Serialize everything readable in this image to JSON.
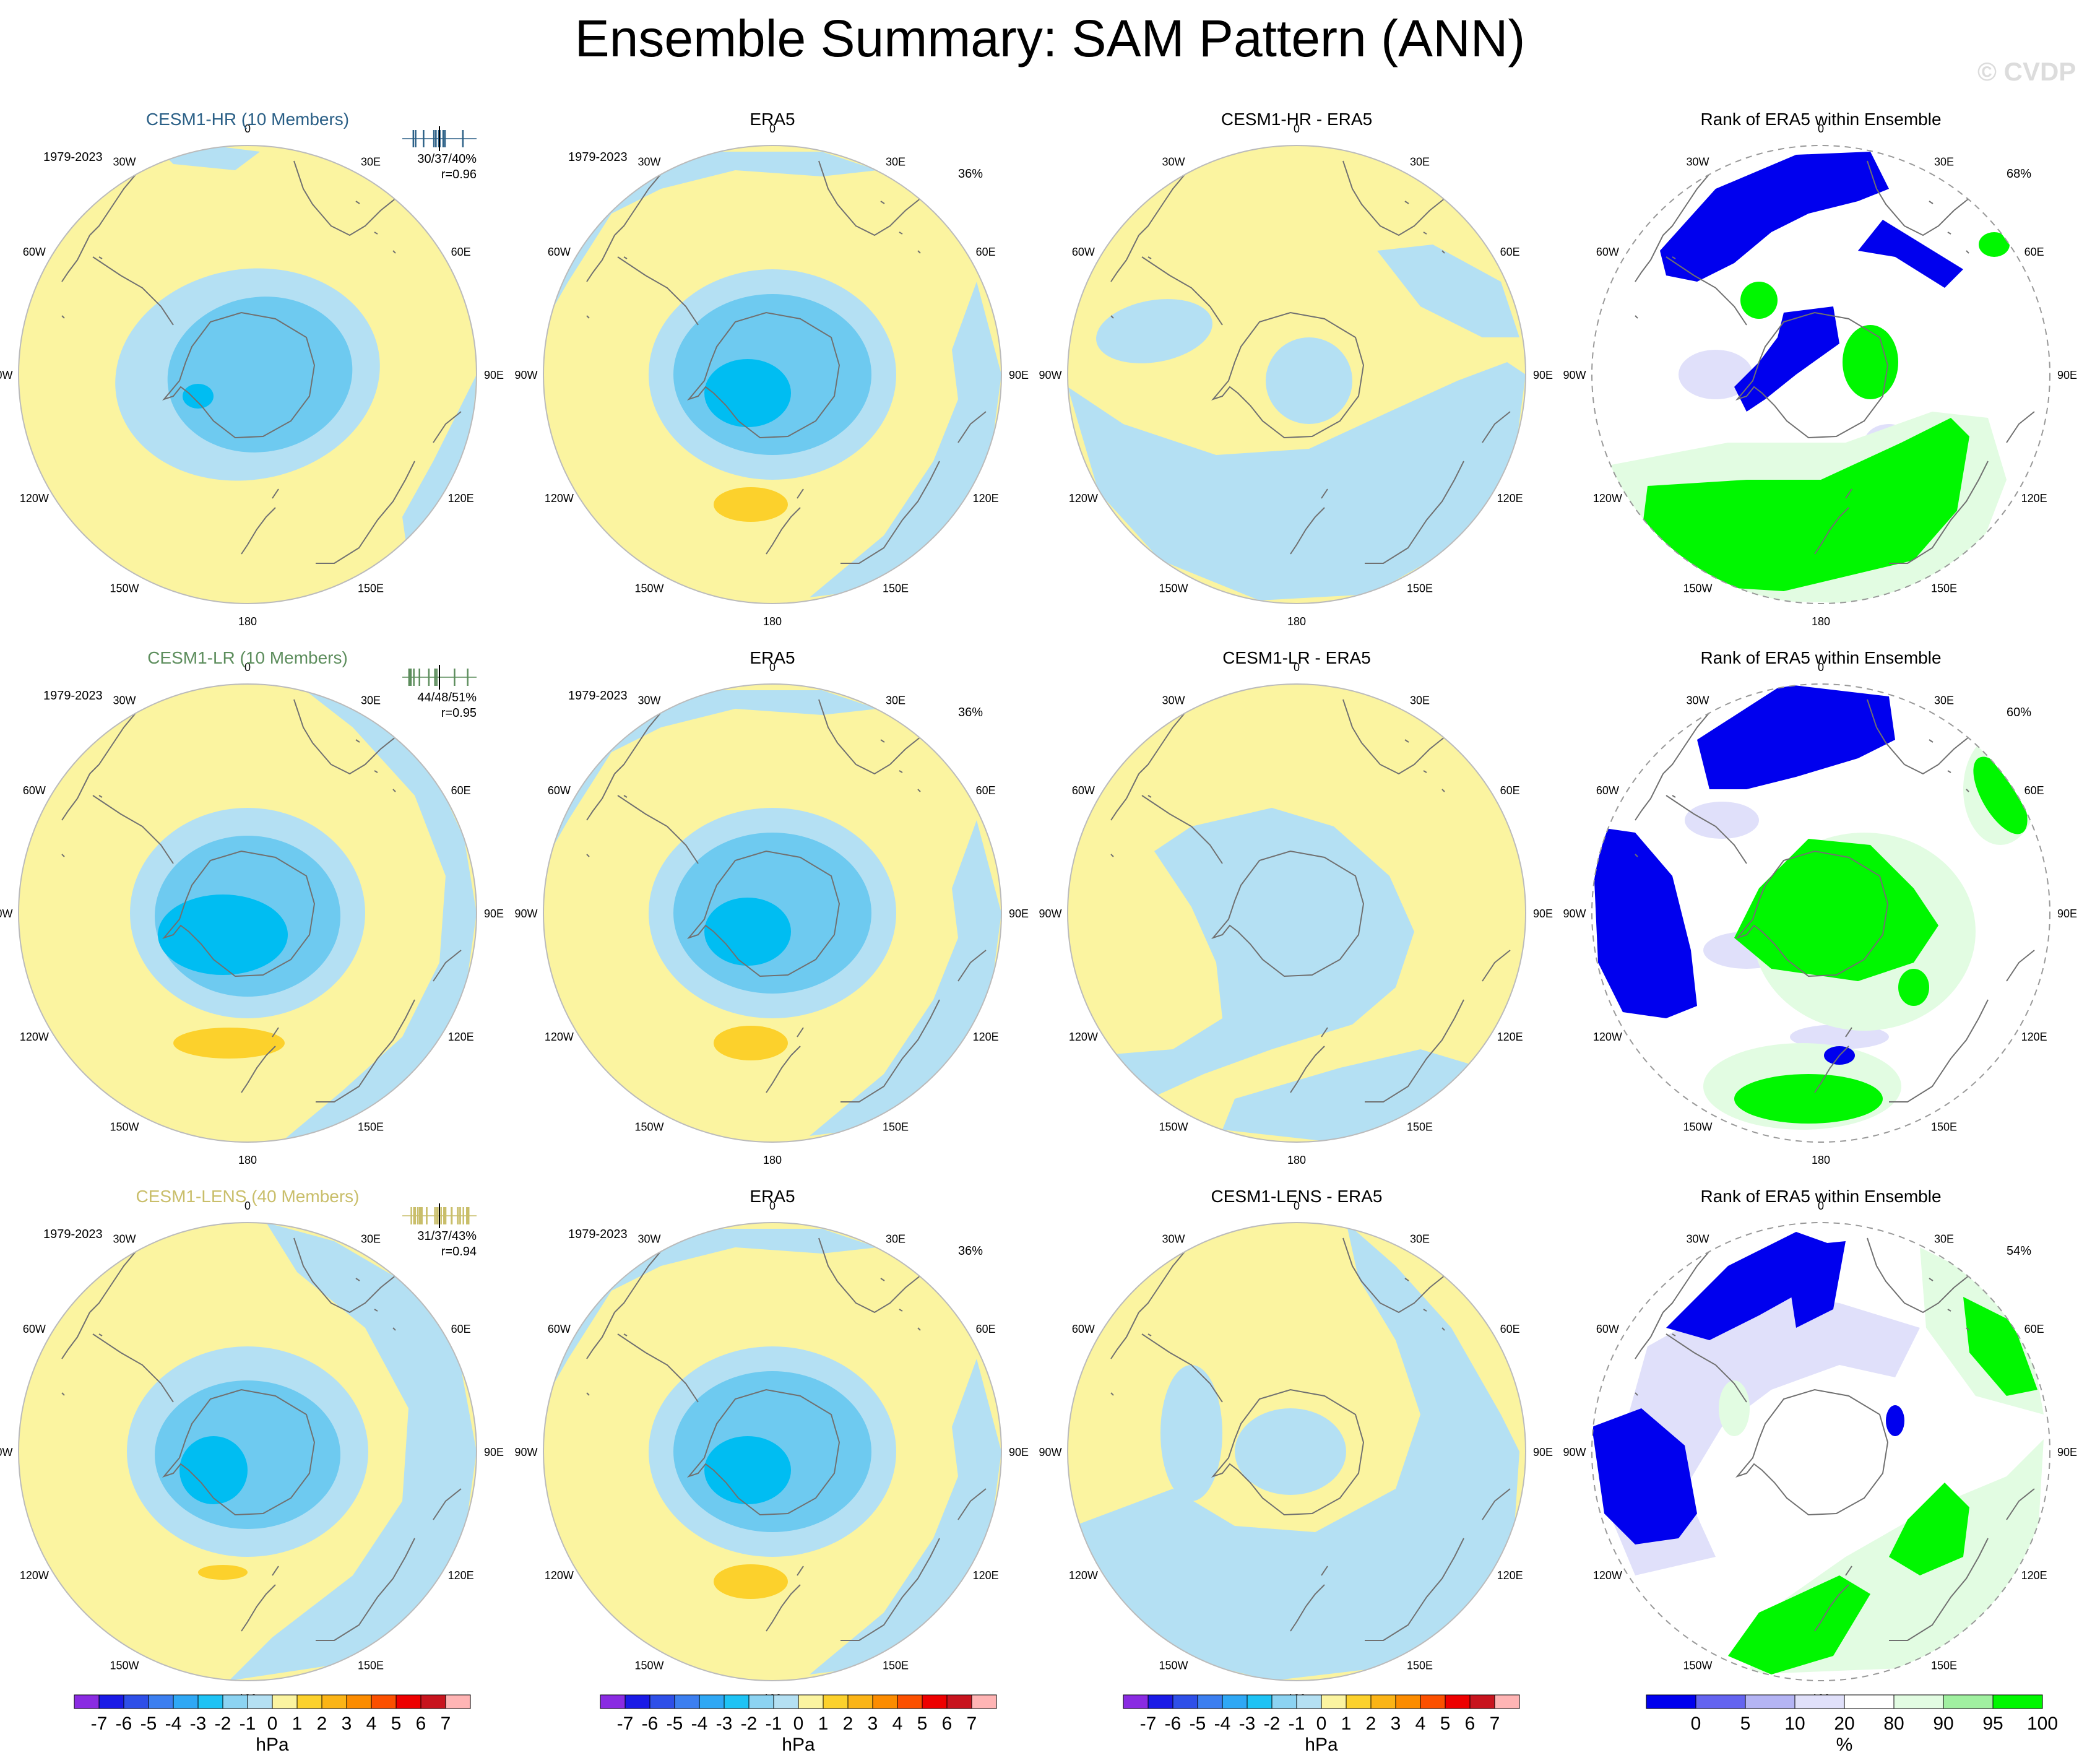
{
  "title": "Ensemble Summary: SAM Pattern (ANN)",
  "watermark": "© CVDP",
  "colors": {
    "land_outline": "#707070",
    "neg1": "#b4e0f3",
    "neg2": "#6ecaf0",
    "neg3": "#00bdf2",
    "pos1": "#fbf4a0",
    "pos2": "#fcd12c",
    "rank_lo": "#0000ee",
    "rank_lo2": "#e0e0fa",
    "rank_mid": "#ffffff",
    "rank_hi2": "#e2fce2",
    "rank_hi": "#00f700"
  },
  "lon_labels": [
    "0",
    "30E",
    "60E",
    "90E",
    "120E",
    "150E",
    "180",
    "150W",
    "120W",
    "90W",
    "60W",
    "30W"
  ],
  "rows": [
    {
      "model": "CESM1-HR (10 Members)",
      "model_color": "#2a5f86",
      "period": "1979-2023",
      "stats": "30/37/40%",
      "corr": "r=0.96",
      "era_title": "ERA5",
      "era_period": "1979-2023",
      "era_pct": "36%",
      "diff_title": "CESM1-HR - ERA5",
      "rank_title": "Rank of ERA5 within Ensemble",
      "rank_pct": "68%",
      "ticks_color": "#2a5f86"
    },
    {
      "model": "CESM1-LR (10 Members)",
      "model_color": "#5c8d5c",
      "period": "1979-2023",
      "stats": "44/48/51%",
      "corr": "r=0.95",
      "era_title": "ERA5",
      "era_period": "1979-2023",
      "era_pct": "36%",
      "diff_title": "CESM1-LR - ERA5",
      "rank_title": "Rank of ERA5 within Ensemble",
      "rank_pct": "60%",
      "ticks_color": "#5c8d5c"
    },
    {
      "model": "CESM1-LENS (40 Members)",
      "model_color": "#c9be6a",
      "period": "1979-2023",
      "stats": "31/37/43%",
      "corr": "r=0.94",
      "era_title": "ERA5",
      "era_period": "1979-2023",
      "era_pct": "36%",
      "diff_title": "CESM1-LENS - ERA5",
      "rank_title": "Rank of ERA5 within Ensemble",
      "rank_pct": "54%",
      "ticks_color": "#c9be6a"
    }
  ],
  "colorbar_hpa": {
    "unit": "hPa",
    "labels": [
      "-7",
      "-6",
      "-5",
      "-4",
      "-3",
      "-2",
      "-1",
      "0",
      "1",
      "2",
      "3",
      "4",
      "5",
      "6",
      "7"
    ],
    "colors": [
      "#8a2be2",
      "#1a1ae6",
      "#2e4fe8",
      "#3c7ff0",
      "#2fa8f5",
      "#1ec3f5",
      "#8cd3f2",
      "#b4e0f3",
      "#fbf4a0",
      "#fcd12c",
      "#fbb416",
      "#fc8c00",
      "#fc5000",
      "#ee0000",
      "#c8141e",
      "#ffb4b4"
    ]
  },
  "colorbar_rank": {
    "unit": "%",
    "labels": [
      "0",
      "5",
      "10",
      "20",
      "80",
      "90",
      "95",
      "100"
    ],
    "colors": [
      "#0000ee",
      "#6464f0",
      "#b4b4f4",
      "#e0e0fa",
      "#ffffff",
      "#e2fce2",
      "#a0f0a0",
      "#00f700"
    ]
  }
}
